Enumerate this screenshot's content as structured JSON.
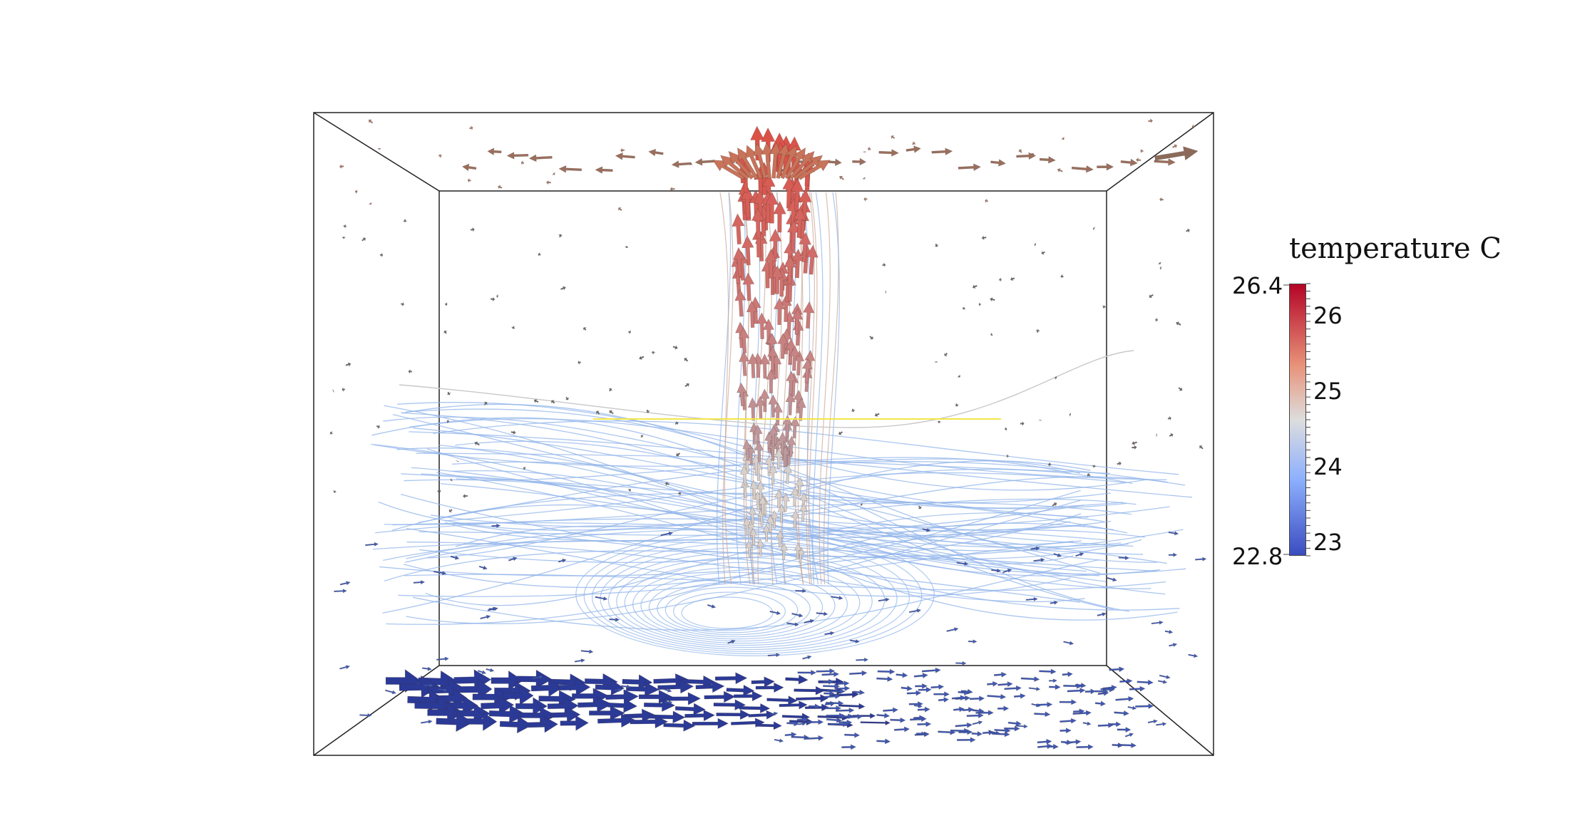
{
  "colorbar": {
    "title": "temperature C",
    "range_max": "26.4",
    "range_min": "22.8",
    "ticks": [
      "26",
      "25",
      "24",
      "23"
    ],
    "min_value": 22.8,
    "max_value": 26.4,
    "tick_values": [
      26,
      25,
      24,
      23
    ],
    "colors": {
      "max": "#b40426",
      "mid": "#dddddd",
      "min": "#3b4cc0"
    }
  },
  "scene": {
    "upward_flow_color": "#c8735a",
    "floor_flow_color": "#2b3a96",
    "streamline_color": "#8fb3ea",
    "highlight_line_color": "#ffe94d"
  }
}
